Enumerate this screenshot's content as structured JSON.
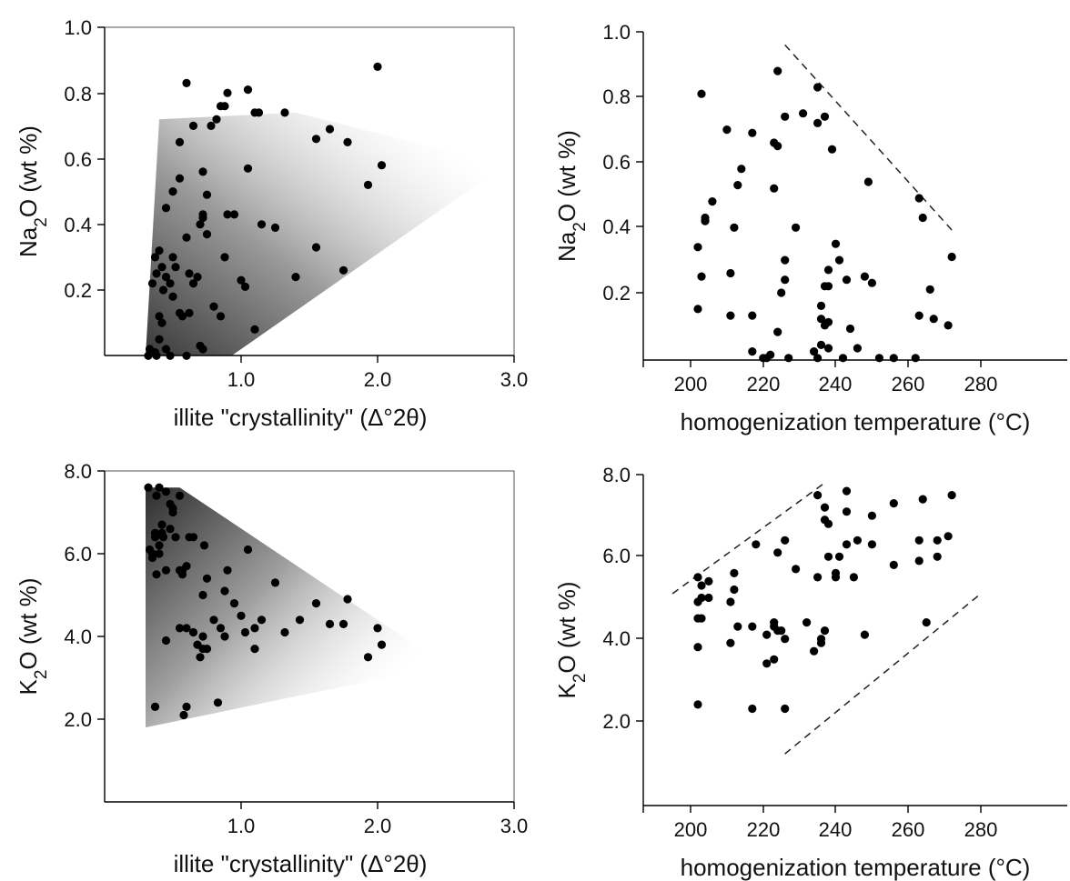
{
  "chart_data": [
    {
      "id": "na2o-vs-crystallinity",
      "type": "scatter",
      "xlabel": "illite \"crystallinity\" (Δ°2θ)",
      "ylabel": "Na2O (wt %)",
      "xlim": [
        0,
        3.0
      ],
      "ylim": [
        0,
        1.0
      ],
      "xticks": [
        "1.0",
        "2.0",
        "3.0"
      ],
      "yticks": [
        "0.2",
        "0.4",
        "0.6",
        "0.8",
        "1.0"
      ],
      "grid": false,
      "frame": true,
      "shaded_field": [
        [
          0.3,
          0.0
        ],
        [
          0.4,
          0.72
        ],
        [
          1.4,
          0.74
        ],
        [
          2.93,
          0.58
        ],
        [
          0.93,
          0.0
        ]
      ],
      "trend_lines": [],
      "x": [
        0.32,
        0.33,
        0.35,
        0.37,
        0.38,
        0.4,
        0.4,
        0.42,
        0.45,
        0.48,
        0.55,
        0.6,
        0.62,
        0.7,
        0.72,
        0.35,
        0.37,
        0.38,
        0.4,
        0.42,
        0.43,
        0.45,
        0.48,
        0.5,
        0.5,
        0.52,
        0.55,
        0.57,
        0.6,
        0.62,
        0.65,
        0.68,
        0.72,
        0.75,
        0.8,
        0.85,
        0.88,
        0.9,
        0.95,
        1.0,
        1.03,
        1.05,
        1.1,
        1.15,
        1.25,
        1.4,
        1.55,
        1.75,
        0.45,
        0.5,
        0.55,
        0.6,
        0.65,
        0.72,
        0.75,
        0.78,
        0.82,
        0.85,
        0.88,
        0.9,
        1.05,
        1.1,
        1.13,
        1.32,
        1.55,
        1.65,
        1.78,
        1.93,
        2.0,
        2.03,
        0.7,
        0.72
      ],
      "y": [
        0.0,
        0.02,
        0.01,
        0.01,
        0.0,
        0.12,
        0.05,
        0.1,
        0.02,
        0.0,
        0.13,
        0.0,
        0.13,
        0.03,
        0.02,
        0.22,
        0.3,
        0.25,
        0.32,
        0.27,
        0.2,
        0.24,
        0.22,
        0.3,
        0.18,
        0.27,
        0.54,
        0.12,
        0.36,
        0.25,
        0.22,
        0.24,
        0.43,
        0.37,
        0.15,
        0.12,
        0.3,
        0.43,
        0.43,
        0.23,
        0.21,
        0.57,
        0.08,
        0.4,
        0.39,
        0.24,
        0.33,
        0.26,
        0.45,
        0.5,
        0.65,
        0.83,
        0.7,
        0.56,
        0.49,
        0.7,
        0.72,
        0.76,
        0.76,
        0.8,
        0.81,
        0.74,
        0.74,
        0.74,
        0.66,
        0.69,
        0.65,
        0.52,
        0.88,
        0.58,
        0.4,
        0.42
      ],
      "point_count": 72
    },
    {
      "id": "na2o-vs-temperature",
      "type": "scatter",
      "xlabel": "homogenization temperature (°C)",
      "ylabel": "Na2O (wt %)",
      "xlim": [
        190,
        282
      ],
      "ylim": [
        0,
        1.0
      ],
      "xticks": [
        "200",
        "220",
        "240",
        "260",
        "280"
      ],
      "yticks": [
        "0.2",
        "0.4",
        "0.6",
        "0.8",
        "1.0"
      ],
      "grid": false,
      "frame": false,
      "trend_lines": [
        [
          [
            226,
            0.96
          ],
          [
            273,
            0.38
          ]
        ]
      ],
      "x": [
        202,
        202,
        203,
        203,
        204,
        204,
        206,
        210,
        211,
        212,
        213,
        214,
        217,
        217,
        217,
        220,
        221,
        222,
        223,
        224,
        224,
        224,
        225,
        226,
        226,
        226,
        227,
        229,
        231,
        235,
        235,
        235,
        236,
        236,
        237,
        237,
        237,
        238,
        238,
        239,
        240,
        241,
        242,
        243,
        244,
        246,
        248,
        249,
        250,
        252,
        256,
        262,
        263,
        263,
        264,
        266,
        267,
        271,
        272,
        234,
        236,
        238,
        238,
        223,
        211
      ],
      "y": [
        0.15,
        0.34,
        0.25,
        0.81,
        0.43,
        0.42,
        0.48,
        0.7,
        0.26,
        0.4,
        0.53,
        0.58,
        0.69,
        0.13,
        0.02,
        0.0,
        0.0,
        0.01,
        0.66,
        0.08,
        0.65,
        0.88,
        0.2,
        0.74,
        0.24,
        0.3,
        0.0,
        0.4,
        0.75,
        0.72,
        0.0,
        0.83,
        0.12,
        0.16,
        0.22,
        0.1,
        0.74,
        0.03,
        0.27,
        0.64,
        0.35,
        0.3,
        0.0,
        0.24,
        0.09,
        0.03,
        0.25,
        0.54,
        0.23,
        0.0,
        0.0,
        0.0,
        0.13,
        0.49,
        0.43,
        0.21,
        0.12,
        0.1,
        0.31,
        0.02,
        0.04,
        0.11,
        0.22,
        0.52,
        0.13
      ],
      "point_count": 65
    },
    {
      "id": "k2o-vs-crystallinity",
      "type": "scatter",
      "xlabel": "illite \"crystallinity\" (Δ°2θ)",
      "ylabel": "K2O (wt %)",
      "xlim": [
        0,
        3.0
      ],
      "ylim": [
        0,
        8.0
      ],
      "xticks": [
        "1.0",
        "2.0",
        "3.0"
      ],
      "yticks": [
        "2.0",
        "4.0",
        "6.0",
        "8.0"
      ],
      "grid": false,
      "frame": true,
      "shaded_field": [
        [
          0.3,
          7.6
        ],
        [
          0.55,
          7.6
        ],
        [
          2.5,
          3.3
        ],
        [
          0.3,
          1.8
        ]
      ],
      "trend_lines": [],
      "x": [
        0.32,
        0.33,
        0.35,
        0.37,
        0.38,
        0.4,
        0.4,
        0.42,
        0.45,
        0.48,
        0.5,
        0.52,
        0.55,
        0.57,
        0.6,
        0.62,
        0.35,
        0.37,
        0.38,
        0.4,
        0.42,
        0.43,
        0.45,
        0.48,
        0.5,
        0.55,
        0.57,
        0.6,
        0.65,
        0.68,
        0.7,
        0.72,
        0.75,
        0.8,
        0.85,
        0.88,
        0.9,
        0.95,
        1.0,
        1.03,
        1.05,
        1.1,
        1.15,
        1.25,
        1.32,
        1.43,
        1.55,
        1.65,
        1.75,
        1.78,
        2.0,
        2.03,
        1.93,
        0.37,
        0.58,
        0.6,
        0.83,
        0.55,
        0.45,
        0.72,
        0.75,
        1.1,
        0.65,
        0.73,
        0.72,
        0.88
      ],
      "y": [
        7.6,
        6.1,
        6.0,
        6.5,
        5.5,
        7.6,
        6.2,
        6.5,
        5.6,
        7.2,
        7.0,
        6.4,
        7.4,
        5.6,
        5.7,
        6.4,
        5.9,
        6.4,
        7.4,
        6.0,
        6.7,
        6.4,
        7.5,
        6.6,
        7.1,
        5.6,
        5.5,
        4.2,
        4.1,
        3.8,
        3.5,
        5.0,
        5.4,
        4.4,
        4.2,
        4.0,
        5.6,
        4.8,
        4.5,
        4.1,
        6.1,
        4.2,
        4.4,
        5.3,
        4.1,
        4.4,
        4.8,
        4.3,
        4.3,
        4.9,
        4.2,
        3.8,
        3.5,
        2.3,
        2.1,
        2.3,
        2.4,
        4.2,
        3.9,
        3.7,
        3.7,
        3.7,
        6.4,
        6.2,
        4.0,
        5.1
      ],
      "point_count": 66
    },
    {
      "id": "k2o-vs-temperature",
      "type": "scatter",
      "xlabel": "homogenization temperature (°C)",
      "ylabel": "K2O (wt %)",
      "xlim": [
        190,
        282
      ],
      "ylim": [
        0,
        8.0
      ],
      "xticks": [
        "200",
        "220",
        "240",
        "260",
        "280"
      ],
      "yticks": [
        "2.0",
        "4.0",
        "6.0",
        "8.0"
      ],
      "grid": false,
      "frame": false,
      "trend_lines": [
        [
          [
            195,
            5.1
          ],
          [
            237,
            7.8
          ]
        ],
        [
          [
            226,
            1.2
          ],
          [
            280,
            5.1
          ]
        ]
      ],
      "x": [
        202,
        202,
        202,
        202,
        203,
        203,
        203,
        205,
        205,
        211,
        211,
        212,
        212,
        213,
        217,
        217,
        218,
        221,
        221,
        223,
        223,
        223,
        224,
        224,
        225,
        226,
        226,
        226,
        229,
        232,
        234,
        235,
        235,
        236,
        236,
        237,
        237,
        237,
        238,
        238,
        240,
        240,
        241,
        243,
        243,
        243,
        245,
        246,
        248,
        250,
        250,
        256,
        256,
        263,
        263,
        264,
        265,
        268,
        268,
        271,
        272,
        202
      ],
      "y": [
        2.4,
        3.8,
        4.5,
        5.5,
        5.0,
        5.3,
        4.5,
        5.0,
        5.4,
        3.9,
        4.9,
        5.2,
        5.6,
        4.3,
        2.3,
        4.3,
        6.3,
        3.4,
        4.1,
        4.3,
        4.4,
        3.5,
        4.2,
        6.1,
        4.2,
        4.0,
        6.4,
        2.3,
        5.7,
        4.4,
        3.7,
        5.5,
        7.5,
        4.0,
        3.9,
        4.2,
        6.9,
        7.2,
        6.0,
        6.8,
        5.6,
        5.5,
        6.0,
        6.3,
        7.1,
        7.6,
        5.5,
        6.4,
        4.1,
        6.3,
        7.0,
        5.8,
        7.3,
        5.9,
        6.4,
        7.4,
        4.4,
        6.0,
        6.4,
        6.5,
        7.5,
        4.9
      ],
      "point_count": 62
    }
  ]
}
